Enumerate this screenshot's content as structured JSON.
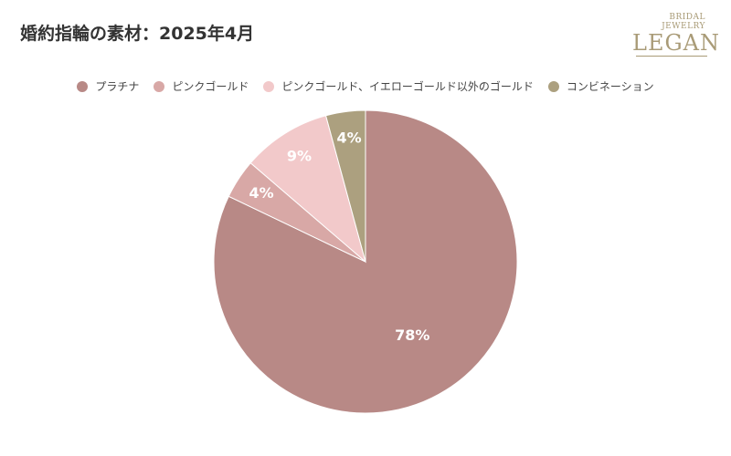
{
  "title": "婚約指輪の素材：2025年4月",
  "logo": {
    "sub": "BRIDAL JEWELRY",
    "main": "LEGAN"
  },
  "chart_data": {
    "type": "pie",
    "title": "婚約指輪の素材：2025年4月",
    "legend_position": "top",
    "slices": [
      {
        "label": "プラチナ",
        "value": 78,
        "display": "78%",
        "color": "#b88986"
      },
      {
        "label": "ピンクゴールド",
        "value": 4,
        "display": "4%",
        "color": "#d8a8a6"
      },
      {
        "label": "ピンクゴールド、イエローゴールド以外のゴールド",
        "value": 9,
        "display": "9%",
        "color": "#f2c9ca"
      },
      {
        "label": "コンビネーション",
        "value": 4,
        "display": "4%",
        "color": "#aca07f"
      }
    ]
  }
}
